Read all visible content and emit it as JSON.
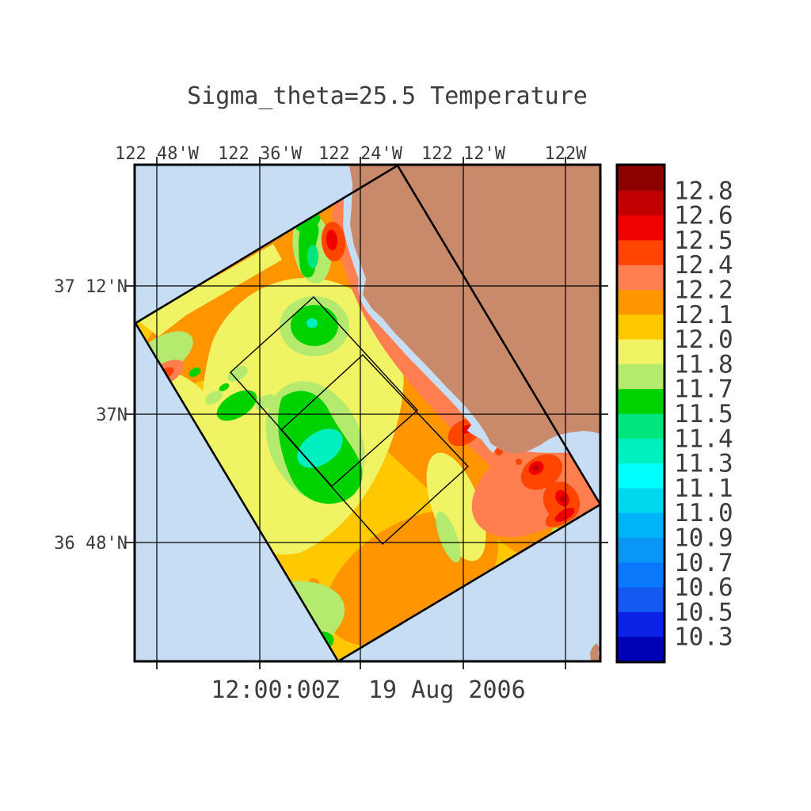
{
  "title": "Sigma_theta=25.5 Temperature",
  "footer_time_label": "12:00:00Z  19 Aug 2006",
  "axes": {
    "top_labels": [
      "122 48'W",
      "122 36'W",
      "122 24'W",
      "122 12'W",
      "122W"
    ],
    "left_labels": [
      "37 12'N",
      "37N",
      "36 48'N"
    ]
  },
  "colorbar": {
    "labels_top_to_bottom": [
      "12.8",
      "12.6",
      "12.5",
      "12.4",
      "12.2",
      "12.1",
      "12.0",
      "11.8",
      "11.7",
      "11.5",
      "11.4",
      "11.3",
      "11.1",
      "11.0",
      "10.9",
      "10.7",
      "10.6",
      "10.5",
      "10.3"
    ],
    "colors_top_to_bottom": [
      "#8C0000",
      "#C00000",
      "#F00000",
      "#FF4500",
      "#FF7F50",
      "#FF9600",
      "#FFC800",
      "#F0F464",
      "#B4EB6E",
      "#00D200",
      "#00E67D",
      "#00F0C0",
      "#00FFFF",
      "#00D8F0",
      "#00B4FA",
      "#0A96F5",
      "#0A78FA",
      "#1459F0",
      "#0A23E6",
      "#0000B4"
    ]
  },
  "map": {
    "ocean_color": "#C7DDF4",
    "land_color": "#C9896B",
    "outline_color": "#000000"
  },
  "chart_data": {
    "type": "heatmap",
    "title": "Sigma_theta=25.5 Temperature",
    "time_label": "12:00:00Z 19 Aug 2006",
    "x_axis": {
      "position": "top",
      "labels": [
        "122 48'W",
        "122 36'W",
        "122 24'W",
        "122 12'W",
        "122W"
      ]
    },
    "y_axis": {
      "position": "left",
      "labels": [
        "37 12'N",
        "37N",
        "36 48'N"
      ]
    },
    "grid": true,
    "colorbar": {
      "position": "right",
      "levels": [
        10.3,
        10.5,
        10.6,
        10.7,
        10.9,
        11.0,
        11.1,
        11.3,
        11.4,
        11.5,
        11.7,
        11.8,
        12.0,
        12.1,
        12.2,
        12.4,
        12.5,
        12.6,
        12.8
      ],
      "colors_low_to_high": [
        "#0000B4",
        "#0A23E6",
        "#1459F0",
        "#0A78FA",
        "#0A96F5",
        "#00B4FA",
        "#00D8F0",
        "#00FFFF",
        "#00F0C0",
        "#00E67D",
        "#00D200",
        "#B4EB6E",
        "#F0F464",
        "#FFC800",
        "#FF9600",
        "#FF7F50",
        "#FF4500",
        "#F00000",
        "#C00000",
        "#8C0000"
      ]
    },
    "map_regions": [
      {
        "name": "ocean-background"
      },
      {
        "name": "california-coast-land",
        "location": "northeast of plot, Monterey Bay coastline"
      },
      {
        "name": "model-swath-domain",
        "shape": "rotated rectangle spanning plot"
      },
      {
        "name": "nested-box-1",
        "shape": "small rotated rectangle, center of swath"
      },
      {
        "name": "nested-box-2",
        "shape": "small rotated rectangle, offset southeast of nested-box-1"
      }
    ],
    "field_readings": [
      {
        "region": "northwest offshore half of swath",
        "temperature_range": [
          11.7,
          12.1
        ]
      },
      {
        "region": "cold eddy center-west with aquamarine core",
        "temperature_range": [
          11.3,
          11.7
        ]
      },
      {
        "region": "second cold eddy / green filament near north coast",
        "temperature_range": [
          11.3,
          11.7
        ]
      },
      {
        "region": "warm band along coast",
        "temperature_range": [
          12.2,
          12.5
        ]
      },
      {
        "region": "southeast warm patches near swath corner",
        "temperature_range": [
          12.5,
          12.8
        ]
      },
      {
        "region": "south-central swath",
        "temperature_range": [
          12.0,
          12.2
        ]
      }
    ]
  }
}
